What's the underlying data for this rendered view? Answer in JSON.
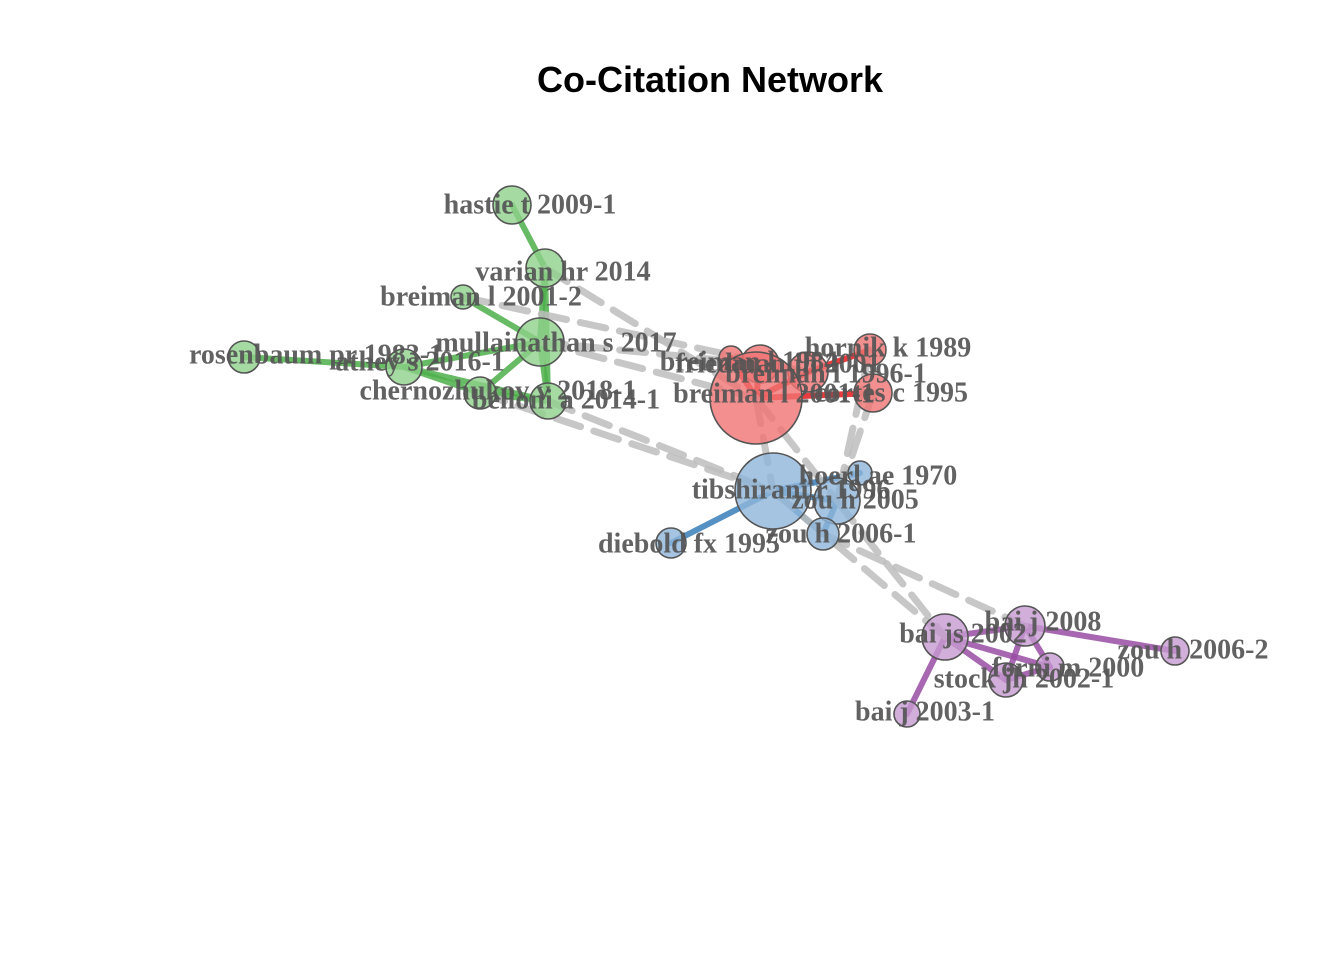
{
  "title": "Co-Citation Network",
  "clusters": {
    "green": {
      "fill": "#8fd18b",
      "edge": "#4daf4a"
    },
    "red": {
      "fill": "#f07373",
      "edge": "#e41a1c"
    },
    "blue": {
      "fill": "#8fb5da",
      "edge": "#377eb8"
    },
    "purple": {
      "fill": "#c79ad1",
      "edge": "#984ea3"
    }
  },
  "between_edge_color": "#bdbdbd",
  "nodes": [
    {
      "id": "hastie",
      "label": "hastie t 2009-1",
      "cluster": "green"
    },
    {
      "id": "varian",
      "label": "varian hr 2014",
      "cluster": "green"
    },
    {
      "id": "breiman2",
      "label": "breiman l 2001-2",
      "cluster": "green"
    },
    {
      "id": "mullainathan",
      "label": "mullainathan s 2017",
      "cluster": "green"
    },
    {
      "id": "rosenbaum",
      "label": "rosenbaum pr 1983-1",
      "cluster": "green"
    },
    {
      "id": "athey",
      "label": "athey s 2016-1",
      "cluster": "green"
    },
    {
      "id": "chernozhukov",
      "label": "chernozhukov v 2018-1",
      "cluster": "green"
    },
    {
      "id": "belloni",
      "label": "belloni a 2014-1",
      "cluster": "green"
    },
    {
      "id": "hornik",
      "label": "hornik k 1989",
      "cluster": "red"
    },
    {
      "id": "friedman",
      "label": "friedman jh 2001",
      "cluster": "red"
    },
    {
      "id": "breiman1996",
      "label": "breiman l 1996-1",
      "cluster": "red"
    },
    {
      "id": "breiman1984",
      "label": "breiman l 1984",
      "cluster": "red"
    },
    {
      "id": "breiman2001",
      "label": "breiman l 2001-1",
      "cluster": "red"
    },
    {
      "id": "cortes",
      "label": "cortes c 1995",
      "cluster": "red"
    },
    {
      "id": "hoerl",
      "label": "hoerl ae 1970",
      "cluster": "blue"
    },
    {
      "id": "tibshirani",
      "label": "tibshirani r 1996",
      "cluster": "blue"
    },
    {
      "id": "zou2005",
      "label": "zou h 2005",
      "cluster": "blue"
    },
    {
      "id": "zou2006",
      "label": "zou h 2006-1",
      "cluster": "blue"
    },
    {
      "id": "diebold",
      "label": "diebold fx 1995",
      "cluster": "blue"
    },
    {
      "id": "bai2008",
      "label": "bai j 2008",
      "cluster": "purple"
    },
    {
      "id": "baijs",
      "label": "bai js 2002",
      "cluster": "purple"
    },
    {
      "id": "zou2006b",
      "label": "zou h 2006-2",
      "cluster": "purple"
    },
    {
      "id": "forni",
      "label": "forni m 2000",
      "cluster": "purple"
    },
    {
      "id": "stock",
      "label": "stock jh 2002-1",
      "cluster": "purple"
    },
    {
      "id": "bai2003",
      "label": "bai j 2003-1",
      "cluster": "purple"
    }
  ],
  "edges": [
    [
      "hastie",
      "varian"
    ],
    [
      "varian",
      "mullainathan"
    ],
    [
      "breiman2",
      "mullainathan"
    ],
    [
      "mullainathan",
      "athey"
    ],
    [
      "mullainathan",
      "belloni"
    ],
    [
      "mullainathan",
      "chernozhukov"
    ],
    [
      "rosenbaum",
      "athey"
    ],
    [
      "athey",
      "chernozhukov"
    ],
    [
      "athey",
      "belloni"
    ],
    [
      "chernozhukov",
      "belloni"
    ],
    [
      "varian",
      "belloni"
    ],
    [
      "hornik",
      "breiman1996"
    ],
    [
      "friedman",
      "breiman2001"
    ],
    [
      "breiman1984",
      "breiman2001"
    ],
    [
      "breiman1996",
      "breiman2001"
    ],
    [
      "breiman2001",
      "cortes"
    ],
    [
      "friedman",
      "breiman1996"
    ],
    [
      "tibshirani",
      "zou2005"
    ],
    [
      "tibshirani",
      "zou2006"
    ],
    [
      "zou2005",
      "zou2006"
    ],
    [
      "hoerl",
      "tibshirani"
    ],
    [
      "tibshirani",
      "diebold"
    ],
    [
      "baijs",
      "bai2008"
    ],
    [
      "baijs",
      "stock"
    ],
    [
      "baijs",
      "bai2003"
    ],
    [
      "baijs",
      "forni"
    ],
    [
      "bai2008",
      "zou2006b"
    ],
    [
      "bai2008",
      "stock"
    ],
    [
      "bai2008",
      "forni"
    ],
    [
      "stock",
      "forni"
    ],
    [
      "mullainathan",
      "breiman2001"
    ],
    [
      "varian",
      "breiman2001"
    ],
    [
      "chernozhukov",
      "tibshirani"
    ],
    [
      "belloni",
      "tibshirani"
    ],
    [
      "breiman2001",
      "tibshirani"
    ],
    [
      "breiman2001",
      "zou2005"
    ],
    [
      "cortes",
      "zou2005"
    ],
    [
      "hornik",
      "zou2005"
    ],
    [
      "zou2005",
      "baijs"
    ],
    [
      "zou2006",
      "bai2008"
    ],
    [
      "tibshirani",
      "baijs"
    ],
    [
      "mullainathan",
      "friedman"
    ],
    [
      "breiman2",
      "breiman1996"
    ]
  ]
}
